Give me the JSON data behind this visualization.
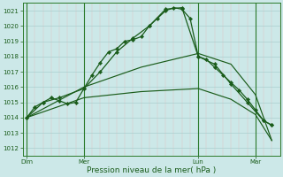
{
  "bg_color": "#cce8e8",
  "grid_color": "#aacfcf",
  "line_color": "#1a5c1a",
  "title": "Pression niveau de la mer( hPa )",
  "xtick_labels": [
    "Dim",
    "Mer",
    "Lun",
    "Mar"
  ],
  "xtick_positions": [
    0,
    14,
    42,
    56
  ],
  "vlines": [
    0,
    14,
    42,
    56
  ],
  "ylim": [
    1011.5,
    1021.5
  ],
  "xlim": [
    -1,
    62
  ],
  "ytick_vals": [
    1012,
    1013,
    1014,
    1015,
    1016,
    1017,
    1018,
    1019,
    1020,
    1021
  ],
  "s1_x": [
    0,
    2,
    4,
    6,
    8,
    10,
    12,
    14,
    16,
    18,
    20,
    22,
    24,
    26,
    28,
    30,
    32,
    34,
    36,
    38,
    40,
    42,
    44,
    46,
    48,
    50,
    52,
    54,
    56,
    58,
    60
  ],
  "s1_y": [
    1014.0,
    1014.7,
    1015.0,
    1015.3,
    1015.1,
    1014.9,
    1015.0,
    1015.9,
    1016.8,
    1017.6,
    1018.3,
    1018.5,
    1019.0,
    1019.1,
    1019.3,
    1020.0,
    1020.5,
    1021.0,
    1021.2,
    1021.1,
    1020.5,
    1018.0,
    1017.8,
    1017.3,
    1016.8,
    1016.3,
    1015.8,
    1015.2,
    1014.5,
    1013.8,
    1013.5
  ],
  "s2_x": [
    0,
    4,
    8,
    14,
    18,
    22,
    26,
    30,
    34,
    38,
    42,
    46,
    50,
    54,
    58,
    60
  ],
  "s2_y": [
    1014.0,
    1015.0,
    1015.3,
    1015.9,
    1017.0,
    1018.3,
    1019.2,
    1020.0,
    1021.1,
    1021.2,
    1018.0,
    1017.5,
    1016.2,
    1015.0,
    1013.8,
    1013.5
  ],
  "s3_x": [
    0,
    14,
    28,
    42,
    50,
    56,
    60
  ],
  "s3_y": [
    1014.0,
    1016.0,
    1017.3,
    1018.2,
    1017.5,
    1015.5,
    1012.5
  ],
  "s4_x": [
    0,
    14,
    28,
    42,
    50,
    56,
    60
  ],
  "s4_y": [
    1014.0,
    1015.3,
    1015.7,
    1015.9,
    1015.2,
    1014.2,
    1012.5
  ],
  "ms": 2.2
}
